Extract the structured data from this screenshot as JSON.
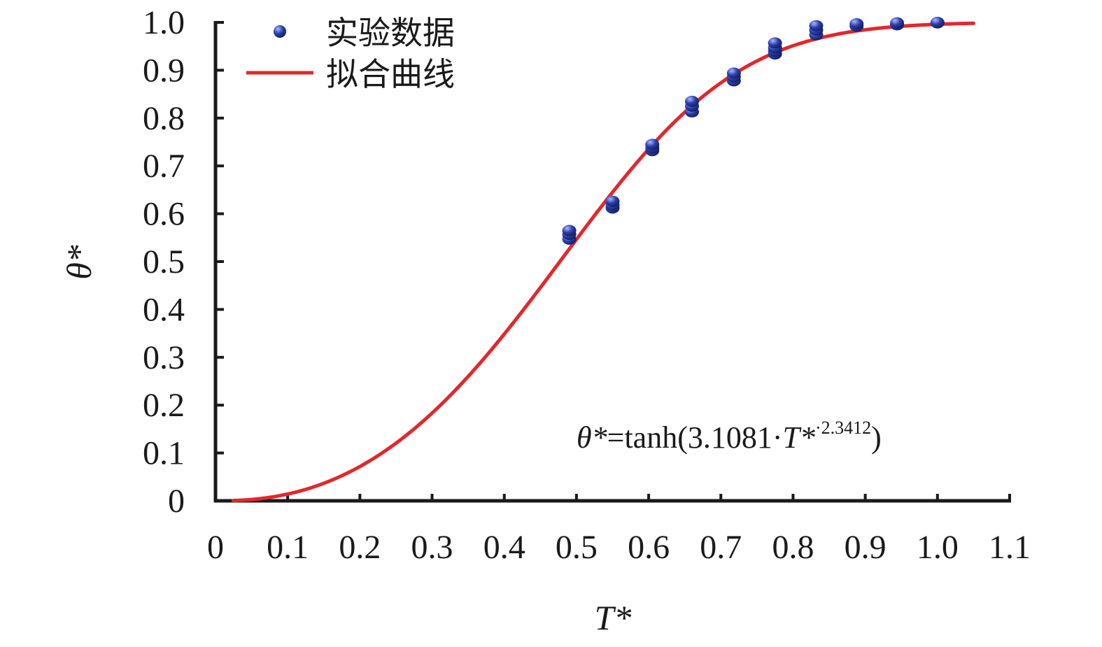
{
  "chart_data": {
    "type": "scatter",
    "title": "",
    "xlabel": "T*",
    "ylabel": "θ*",
    "xlim": [
      0,
      1.1
    ],
    "ylim": [
      0,
      1.0
    ],
    "xticks": [
      "0",
      "0.1",
      "0.2",
      "0.3",
      "0.4",
      "0.5",
      "0.6",
      "0.7",
      "0.8",
      "0.9",
      "1.0",
      "1.1"
    ],
    "yticks": [
      "0",
      "0.1",
      "0.2",
      "0.3",
      "0.4",
      "0.5",
      "0.6",
      "0.7",
      "0.8",
      "0.9",
      "1.0"
    ],
    "grid": false,
    "legend": "top-left",
    "series": [
      {
        "name": "实验数据",
        "kind": "scatter",
        "color": "#2b3fa8",
        "points": [
          [
            0.49,
            0.547
          ],
          [
            0.49,
            0.557
          ],
          [
            0.49,
            0.565
          ],
          [
            0.55,
            0.612
          ],
          [
            0.55,
            0.618
          ],
          [
            0.55,
            0.626
          ],
          [
            0.605,
            0.732
          ],
          [
            0.605,
            0.738
          ],
          [
            0.605,
            0.745
          ],
          [
            0.66,
            0.813
          ],
          [
            0.66,
            0.825
          ],
          [
            0.66,
            0.835
          ],
          [
            0.718,
            0.878
          ],
          [
            0.718,
            0.886
          ],
          [
            0.718,
            0.894
          ],
          [
            0.775,
            0.934
          ],
          [
            0.775,
            0.94
          ],
          [
            0.775,
            0.947
          ],
          [
            0.775,
            0.957
          ],
          [
            0.832,
            0.974
          ],
          [
            0.832,
            0.984
          ],
          [
            0.832,
            0.993
          ],
          [
            0.888,
            0.992
          ],
          [
            0.888,
            0.997
          ],
          [
            0.944,
            0.995
          ],
          [
            0.944,
            0.999
          ],
          [
            1.0,
            0.999
          ],
          [
            1.0,
            1.0
          ]
        ]
      },
      {
        "name": "拟合曲线",
        "kind": "line",
        "color": "#e0282e",
        "equation": {
          "coefficient": 3.1081,
          "exponent": 2.3412
        },
        "x_range": [
          0.0,
          1.05
        ]
      }
    ],
    "annotation": {
      "lhs": "θ*",
      "rhs_prefix": "=tanh(3.1081·",
      "var": "T*",
      "sup": "·2.3412",
      "suffix": ")"
    }
  }
}
